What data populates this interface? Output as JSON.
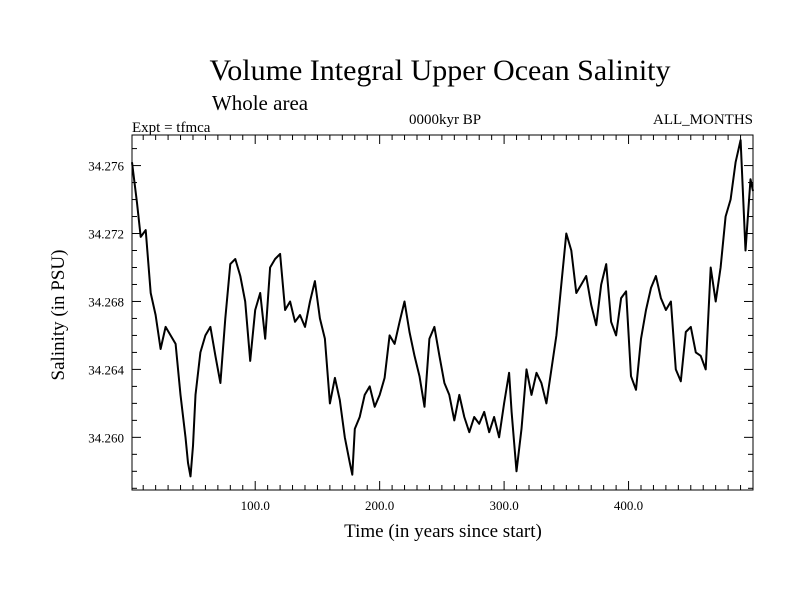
{
  "chart_data": {
    "type": "line",
    "title": "Volume Integral Upper Ocean Salinity",
    "subtitle": "Whole area",
    "experiment_label": "Expt = tfmca",
    "period_label": "0000kyr BP",
    "months_label": "ALL_MONTHS",
    "xlabel": "Time (in years since start)",
    "ylabel": "Salinity (in PSU)",
    "xlim": [
      1,
      500
    ],
    "ylim": [
      34.2569,
      34.2778
    ],
    "x_ticks": [
      100,
      200,
      300,
      400
    ],
    "x_tick_labels": [
      "100.0",
      "200.0",
      "300.0",
      "400.0"
    ],
    "y_ticks": [
      34.26,
      34.264,
      34.268,
      34.272,
      34.276
    ],
    "y_tick_labels": [
      "34.260",
      "34.264",
      "34.268",
      "34.272",
      "34.276"
    ],
    "grid": false,
    "legend": "none",
    "line_color": "#000000",
    "series": [
      {
        "x": [
          1,
          5,
          8,
          12,
          16,
          20,
          24,
          28,
          32,
          36,
          40,
          44,
          46,
          48,
          50,
          52,
          56,
          60,
          64,
          68,
          72,
          76,
          80,
          84,
          88,
          92,
          96,
          100,
          104,
          108,
          112,
          116,
          120,
          124,
          128,
          132,
          136,
          140,
          144,
          148,
          152,
          156,
          160,
          164,
          168,
          172,
          176,
          178,
          180,
          184,
          188,
          192,
          196,
          200,
          204,
          208,
          212,
          216,
          220,
          224,
          228,
          232,
          236,
          240,
          244,
          248,
          252,
          256,
          260,
          264,
          268,
          272,
          276,
          280,
          284,
          288,
          292,
          296,
          300,
          304,
          306,
          310,
          314,
          318,
          322,
          326,
          330,
          334,
          338,
          342,
          346,
          350,
          354,
          358,
          362,
          366,
          370,
          374,
          378,
          382,
          386,
          390,
          394,
          398,
          402,
          406,
          410,
          414,
          418,
          422,
          426,
          430,
          434,
          438,
          442,
          446,
          450,
          454,
          458,
          462,
          466,
          470,
          474,
          478,
          482,
          486,
          490,
          494,
          498,
          500
        ],
        "values": [
          34.2762,
          34.2738,
          34.2718,
          34.2722,
          34.2685,
          34.2672,
          34.2652,
          34.2665,
          34.266,
          34.2655,
          34.2625,
          34.26,
          34.2585,
          34.2577,
          34.2595,
          34.2625,
          34.265,
          34.266,
          34.2665,
          34.2648,
          34.2632,
          34.267,
          34.2702,
          34.2705,
          34.2695,
          34.268,
          34.2645,
          34.2675,
          34.2685,
          34.2658,
          34.27,
          34.2705,
          34.2708,
          34.2675,
          34.268,
          34.2668,
          34.2672,
          34.2665,
          34.268,
          34.2692,
          34.267,
          34.2658,
          34.262,
          34.2635,
          34.2622,
          34.26,
          34.2585,
          34.2578,
          34.2605,
          34.2612,
          34.2625,
          34.263,
          34.2618,
          34.2625,
          34.2635,
          34.266,
          34.2655,
          34.2668,
          34.268,
          34.2662,
          34.2648,
          34.2636,
          34.2618,
          34.2658,
          34.2665,
          34.2648,
          34.2632,
          34.2625,
          34.261,
          34.2625,
          34.2612,
          34.2603,
          34.2612,
          34.2608,
          34.2615,
          34.2603,
          34.2612,
          34.26,
          34.262,
          34.2638,
          34.2615,
          34.258,
          34.2605,
          34.264,
          34.2625,
          34.2638,
          34.2632,
          34.262,
          34.264,
          34.266,
          34.269,
          34.272,
          34.271,
          34.2685,
          34.269,
          34.2695,
          34.2678,
          34.2666,
          34.269,
          34.2702,
          34.2668,
          34.266,
          34.2682,
          34.2686,
          34.2636,
          34.2628,
          34.2658,
          34.2675,
          34.2688,
          34.2695,
          34.2682,
          34.2675,
          34.268,
          34.264,
          34.2633,
          34.2662,
          34.2665,
          34.265,
          34.2648,
          34.264,
          34.27,
          34.268,
          34.27,
          34.273,
          34.274,
          34.2762,
          34.2775,
          34.271,
          34.2752,
          34.2745
        ]
      }
    ]
  }
}
